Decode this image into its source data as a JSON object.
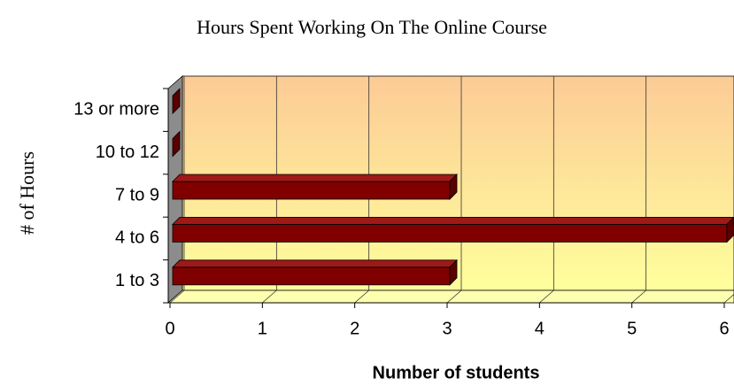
{
  "chart_data": {
    "type": "bar",
    "orientation": "horizontal",
    "title": "Hours Spent Working On The Online Course",
    "x_label": "Number of students",
    "y_label": "# of Hours",
    "categories": [
      "1 to 3",
      "4 to 6",
      "7 to 9",
      "10 to 12",
      "13 or more"
    ],
    "values": [
      3,
      6,
      3,
      0,
      0
    ],
    "color": "#800000",
    "xlim": [
      0,
      6
    ],
    "xticks": [
      0,
      1,
      2,
      3,
      4,
      5,
      6
    ],
    "grid": true
  }
}
